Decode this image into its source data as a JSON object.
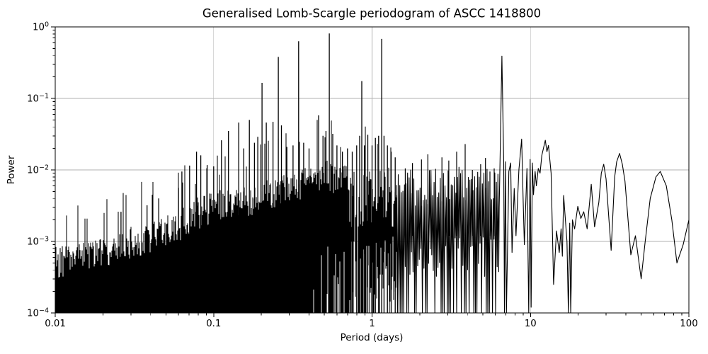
{
  "chart_data": {
    "type": "line",
    "title": "Generalised Lomb-Scargle periodogram of ASCC 1418800",
    "xlabel": "Period (days)",
    "ylabel": "Power",
    "xscale": "log",
    "yscale": "log",
    "xlim": [
      0.01,
      100
    ],
    "ylim": [
      0.0001,
      1
    ],
    "grid": true,
    "legend": "none",
    "line_color": "#000000",
    "grid_color": "#b0b0b0",
    "background_color": "#ffffff",
    "text_color": "#000000",
    "x_ticks": [
      {
        "label": "0.01",
        "value": 0.01
      },
      {
        "label": "0.1",
        "value": 0.1
      },
      {
        "label": "1",
        "value": 1
      },
      {
        "label": "10",
        "value": 10
      },
      {
        "label": "100",
        "value": 100
      }
    ],
    "y_ticks": [
      {
        "base": "10",
        "exp": "0",
        "value": 1
      },
      {
        "base": "10",
        "exp": "−1",
        "value": 0.1
      },
      {
        "base": "10",
        "exp": "−2",
        "value": 0.01
      },
      {
        "base": "10",
        "exp": "−3",
        "value": 0.001
      },
      {
        "base": "10",
        "exp": "−4",
        "value": 0.0001
      }
    ],
    "comb_envelope": [
      [
        0.01,
        0.00085
      ],
      [
        0.014,
        0.00095
      ],
      [
        0.02,
        0.0011
      ],
      [
        0.03,
        0.0016
      ],
      [
        0.045,
        0.0021
      ],
      [
        0.06,
        0.0028
      ],
      [
        0.08,
        0.0042
      ],
      [
        0.1,
        0.005
      ],
      [
        0.13,
        0.0058
      ],
      [
        0.16,
        0.0063
      ],
      [
        0.2,
        0.007
      ],
      [
        0.25,
        0.0085
      ],
      [
        0.3,
        0.0095
      ],
      [
        0.38,
        0.0108
      ],
      [
        0.45,
        0.013
      ],
      [
        0.52,
        0.014
      ],
      [
        0.6,
        0.012
      ],
      [
        0.7,
        0.0115
      ],
      [
        0.85,
        0.0122
      ],
      [
        1.0,
        0.013
      ],
      [
        1.2,
        0.0135
      ],
      [
        1.43,
        0.012
      ]
    ],
    "zigzag_envelope": [
      [
        1.43,
        0.012
      ],
      [
        1.7,
        0.011
      ],
      [
        2.0,
        0.009
      ],
      [
        2.4,
        0.0105
      ],
      [
        3.0,
        0.011
      ],
      [
        4.0,
        0.012
      ],
      [
        5.0,
        0.011
      ],
      [
        6.35,
        0.012
      ]
    ],
    "major_peaks": [
      [
        0.026,
        0.0026
      ],
      [
        0.038,
        0.0032
      ],
      [
        0.045,
        0.004
      ],
      [
        0.06,
        0.0056
      ],
      [
        0.063,
        0.0095
      ],
      [
        0.0705,
        0.0115
      ],
      [
        0.078,
        0.018
      ],
      [
        0.083,
        0.016
      ],
      [
        0.091,
        0.0117
      ],
      [
        0.1,
        0.0112
      ],
      [
        0.112,
        0.026
      ],
      [
        0.124,
        0.035
      ],
      [
        0.144,
        0.046
      ],
      [
        0.155,
        0.02
      ],
      [
        0.168,
        0.05
      ],
      [
        0.181,
        0.024
      ],
      [
        0.19,
        0.029
      ],
      [
        0.202,
        0.165
      ],
      [
        0.215,
        0.046
      ],
      [
        0.237,
        0.047
      ],
      [
        0.256,
        0.38
      ],
      [
        0.268,
        0.042
      ],
      [
        0.29,
        0.021
      ],
      [
        0.317,
        0.022
      ],
      [
        0.344,
        0.63
      ],
      [
        0.37,
        0.024
      ],
      [
        0.4,
        0.02
      ],
      [
        0.46,
        0.058
      ],
      [
        0.49,
        0.03
      ],
      [
        0.512,
        0.035
      ],
      [
        0.537,
        0.81
      ],
      [
        0.565,
        0.032
      ],
      [
        0.6,
        0.022
      ],
      [
        0.65,
        0.018
      ],
      [
        0.7,
        0.02
      ],
      [
        0.75,
        0.018
      ],
      [
        0.8,
        0.022
      ],
      [
        0.835,
        0.03
      ],
      [
        0.861,
        0.175
      ],
      [
        0.895,
        0.022
      ],
      [
        0.94,
        0.031
      ],
      [
        1.0,
        0.022
      ],
      [
        1.05,
        0.028
      ],
      [
        1.1,
        0.03
      ],
      [
        1.15,
        0.68
      ],
      [
        1.19,
        0.03
      ],
      [
        1.25,
        0.022
      ],
      [
        1.32,
        0.018
      ],
      [
        1.4,
        0.015
      ]
    ],
    "mid_peaks": [
      [
        1.62,
        0.0105
      ],
      [
        1.8,
        0.0125
      ],
      [
        2.05,
        0.014
      ],
      [
        2.25,
        0.0165
      ],
      [
        2.76,
        0.015
      ],
      [
        3.05,
        0.0135
      ],
      [
        3.42,
        0.018
      ],
      [
        3.87,
        0.023
      ],
      [
        4.3,
        0.01
      ],
      [
        4.85,
        0.012
      ],
      [
        5.2,
        0.0147
      ],
      [
        5.55,
        0.0095
      ],
      [
        5.9,
        0.0105
      ]
    ],
    "tail_points": [
      [
        6.35,
        0.003
      ],
      [
        6.6,
        0.39
      ],
      [
        6.78,
        0.012
      ],
      [
        6.85,
        0.0001
      ],
      [
        6.95,
        0.013
      ],
      [
        7.05,
        0.0001
      ],
      [
        7.3,
        0.0095
      ],
      [
        7.5,
        0.0125
      ],
      [
        7.65,
        0.0007
      ],
      [
        7.9,
        0.0055
      ],
      [
        8.1,
        0.0012
      ],
      [
        8.45,
        0.01
      ],
      [
        8.8,
        0.027
      ],
      [
        9.0,
        0.0035
      ],
      [
        9.15,
        0.0009
      ],
      [
        9.5,
        0.0105
      ],
      [
        9.75,
        0.0001
      ],
      [
        9.95,
        0.014
      ],
      [
        10.1,
        0.00012
      ],
      [
        10.28,
        0.0125
      ],
      [
        10.45,
        0.0045
      ],
      [
        10.7,
        0.0095
      ],
      [
        10.9,
        0.006
      ],
      [
        11.2,
        0.0105
      ],
      [
        11.5,
        0.009
      ],
      [
        11.8,
        0.016
      ],
      [
        12.4,
        0.026
      ],
      [
        12.7,
        0.018
      ],
      [
        13.0,
        0.022
      ],
      [
        13.5,
        0.009
      ],
      [
        14.0,
        0.00025
      ],
      [
        14.6,
        0.0014
      ],
      [
        15.2,
        0.0007
      ],
      [
        15.6,
        0.0015
      ],
      [
        15.9,
        0.00062
      ],
      [
        16.2,
        0.0044
      ],
      [
        17.0,
        0.001
      ],
      [
        17.35,
        0.0001
      ],
      [
        17.7,
        0.0018
      ],
      [
        17.95,
        0.0001
      ],
      [
        18.4,
        0.002
      ],
      [
        19.0,
        0.0015
      ],
      [
        19.9,
        0.0031
      ],
      [
        20.8,
        0.0021
      ],
      [
        21.7,
        0.0026
      ],
      [
        22.8,
        0.0015
      ],
      [
        24.2,
        0.0063
      ],
      [
        25.4,
        0.0016
      ],
      [
        27.0,
        0.0035
      ],
      [
        28.0,
        0.009
      ],
      [
        29.0,
        0.012
      ],
      [
        30.0,
        0.0075
      ],
      [
        32.3,
        0.00075
      ],
      [
        34.0,
        0.008
      ],
      [
        35.0,
        0.013
      ],
      [
        36.5,
        0.017
      ],
      [
        38.0,
        0.012
      ],
      [
        39.5,
        0.007
      ],
      [
        43.0,
        0.00065
      ],
      [
        46.0,
        0.0012
      ],
      [
        50.0,
        0.0003
      ],
      [
        53.0,
        0.001
      ],
      [
        57.0,
        0.004
      ],
      [
        62.0,
        0.008
      ],
      [
        66.0,
        0.0095
      ],
      [
        72.0,
        0.006
      ],
      [
        78.0,
        0.002
      ],
      [
        84.0,
        0.0005
      ],
      [
        92.0,
        0.0009
      ],
      [
        100.0,
        0.002
      ]
    ]
  }
}
